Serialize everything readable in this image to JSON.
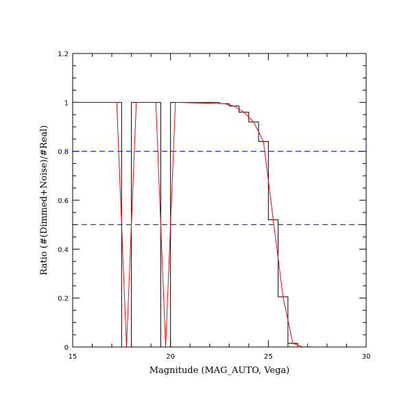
{
  "chart_data": {
    "type": "line",
    "xlabel": "Magnitude (MAG_AUTO, Vega)",
    "ylabel": "Ratio (#(Dimmed+Noise)/#Real)",
    "xlim": [
      15,
      30
    ],
    "ylim": [
      0,
      1.2
    ],
    "x_ticks": [
      15,
      20,
      25,
      30
    ],
    "x_tick_labels": [
      "15",
      "20",
      "25",
      "30"
    ],
    "y_ticks": [
      0,
      0.2,
      0.4,
      0.6,
      0.8,
      1,
      1.2
    ],
    "y_tick_labels": [
      "0",
      "0.2",
      "0.4",
      "0.6",
      "0.8",
      "1",
      "1.2"
    ],
    "grid": false,
    "series": [
      {
        "style": "step-histogram",
        "color": "#000000",
        "bins": [
          [
            15.0,
            17.5,
            1.0
          ],
          [
            17.5,
            18.0,
            0.0
          ],
          [
            18.0,
            19.5,
            1.0
          ],
          [
            19.5,
            20.0,
            0.0
          ],
          [
            20.0,
            22.5,
            1.0
          ],
          [
            22.5,
            23.0,
            0.995
          ],
          [
            23.0,
            23.5,
            0.985
          ],
          [
            23.5,
            24.0,
            0.96
          ],
          [
            24.0,
            24.5,
            0.92
          ],
          [
            24.5,
            25.0,
            0.84
          ],
          [
            25.0,
            25.5,
            0.52
          ],
          [
            25.5,
            26.0,
            0.205
          ],
          [
            26.0,
            26.5,
            0.015
          ],
          [
            26.5,
            30.0,
            0.0
          ]
        ]
      },
      {
        "style": "line",
        "color": "#ff0000",
        "x": [
          15.0,
          17.25,
          17.75,
          18.25,
          19.25,
          19.75,
          20.25,
          22.75,
          23.25,
          23.75,
          24.25,
          24.75,
          25.25,
          25.75,
          26.25,
          26.75,
          30.0
        ],
        "y": [
          1.0,
          1.0,
          0.0,
          1.0,
          1.0,
          0.0,
          1.0,
          0.995,
          0.985,
          0.96,
          0.92,
          0.84,
          0.52,
          0.205,
          0.015,
          0.0,
          0.0
        ]
      }
    ],
    "reference_lines": [
      {
        "y": 0.8,
        "color": "#0000ff",
        "style": "dashed"
      },
      {
        "y": 0.5,
        "color": "#0000ff",
        "style": "dashed"
      }
    ]
  }
}
